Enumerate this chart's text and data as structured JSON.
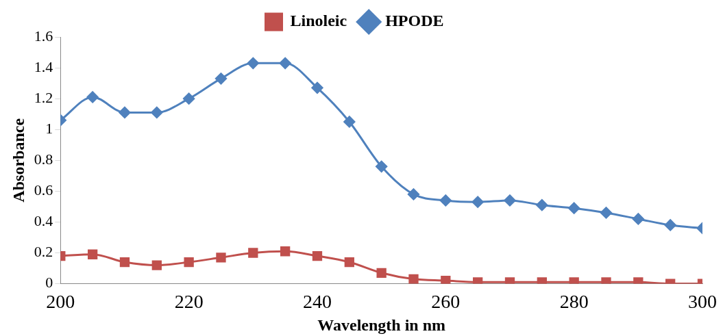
{
  "chart_data": {
    "type": "line",
    "xlabel": "Wavelength in nm",
    "ylabel": "Absorbance",
    "x": [
      200,
      205,
      210,
      215,
      220,
      225,
      230,
      235,
      240,
      245,
      250,
      255,
      260,
      265,
      270,
      275,
      280,
      285,
      290,
      295,
      300
    ],
    "series": [
      {
        "name": "Linoleic",
        "color": "#c0504d",
        "marker": "square",
        "values": [
          0.18,
          0.19,
          0.14,
          0.12,
          0.14,
          0.17,
          0.2,
          0.21,
          0.18,
          0.14,
          0.07,
          0.03,
          0.02,
          0.01,
          0.01,
          0.01,
          0.01,
          0.01,
          0.01,
          0.0,
          0.0
        ]
      },
      {
        "name": "HPODE",
        "color": "#4f81bd",
        "marker": "diamond",
        "values": [
          1.06,
          1.21,
          1.11,
          1.11,
          1.2,
          1.33,
          1.43,
          1.43,
          1.27,
          1.05,
          0.76,
          0.58,
          0.54,
          0.53,
          0.54,
          0.51,
          0.49,
          0.46,
          0.42,
          0.38,
          0.36
        ]
      }
    ],
    "xlim": [
      200,
      300
    ],
    "xticks": [
      200,
      220,
      240,
      260,
      280,
      300
    ],
    "ylim": [
      0,
      1.6
    ],
    "yticks": [
      0,
      0.2,
      0.4,
      0.6,
      0.8,
      1,
      1.2,
      1.4,
      1.6
    ],
    "grid": false,
    "legend": "top",
    "line_style": "solid"
  }
}
